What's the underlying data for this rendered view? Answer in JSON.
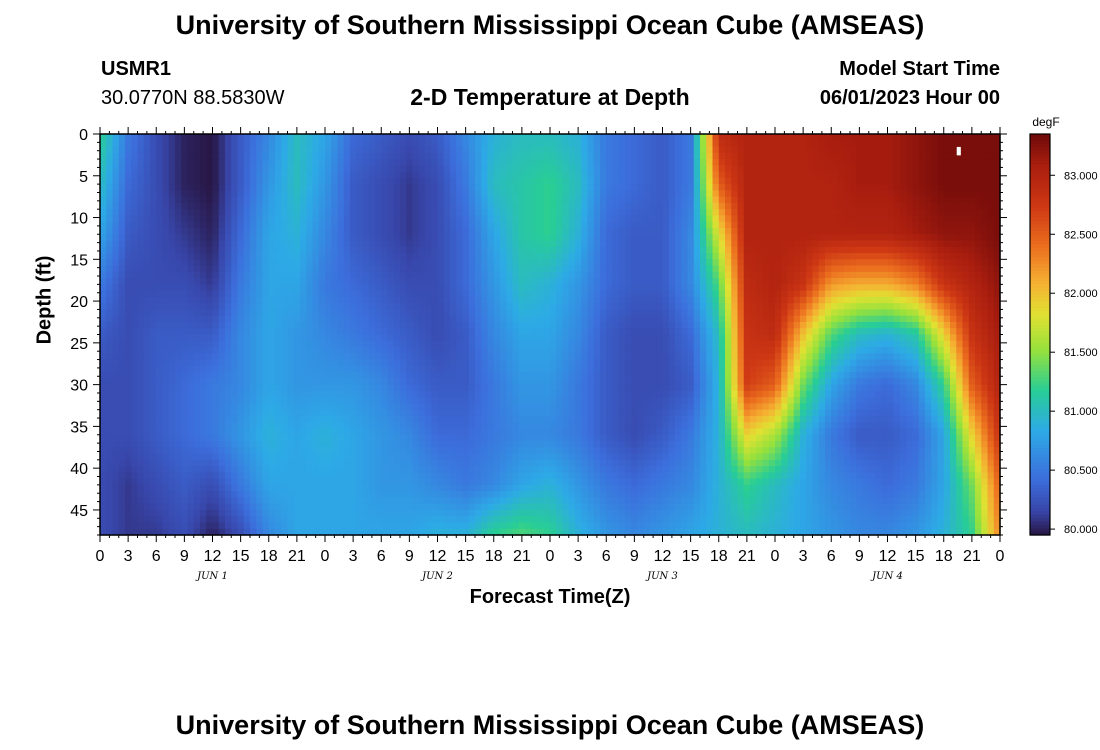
{
  "header": {
    "title": "University of Southern Mississippi Ocean Cube (AMSEAS)",
    "station_id": "USMR1",
    "station_coords": "30.0770N  88.5830W",
    "product": "2-D Temperature at Depth",
    "model_start_label": "Model Start Time",
    "model_start_value": "06/01/2023 Hour 00"
  },
  "footer": {
    "title_repeat": "University of Southern Mississippi Ocean Cube (AMSEAS)"
  },
  "chart_data": {
    "type": "heatmap",
    "xlabel": "Forecast Time(Z)",
    "ylabel": "Depth (ft)",
    "x_tick_labels": [
      "0",
      "3",
      "6",
      "9",
      "12",
      "15",
      "18",
      "21",
      "0",
      "3",
      "6",
      "9",
      "12",
      "15",
      "18",
      "21",
      "0",
      "3",
      "6",
      "9",
      "12",
      "15",
      "18",
      "21",
      "0",
      "3",
      "6",
      "9",
      "12",
      "15",
      "18",
      "21",
      "0"
    ],
    "day_labels": [
      {
        "label": "JUN 1",
        "at_hour": 12
      },
      {
        "label": "JUN 2",
        "at_hour": 36
      },
      {
        "label": "JUN 3",
        "at_hour": 60
      },
      {
        "label": "JUN 4",
        "at_hour": 84
      }
    ],
    "xlim_hours": [
      0,
      96
    ],
    "y_ticks": [
      0,
      5,
      10,
      15,
      20,
      25,
      30,
      35,
      40,
      45
    ],
    "ylim_ft": [
      0,
      48
    ],
    "colorbar": {
      "unit": "degF",
      "ticks": [
        "80.000",
        "80.500",
        "81.000",
        "81.500",
        "82.000",
        "82.500",
        "83.000"
      ],
      "range": [
        79.95,
        83.35
      ]
    },
    "depths_ft": [
      0,
      6,
      12,
      18,
      24,
      30,
      36,
      42,
      48
    ],
    "hours": [
      0,
      3,
      6,
      9,
      12,
      15,
      18,
      21,
      24,
      27,
      30,
      33,
      36,
      39,
      42,
      45,
      48,
      51,
      54,
      57,
      60,
      63,
      66,
      69,
      72,
      75,
      78,
      81,
      84,
      87,
      90,
      93,
      96
    ],
    "temperature_degF": [
      [
        81.2,
        80.5,
        80.2,
        80.0,
        79.95,
        80.3,
        80.6,
        81.0,
        80.8,
        80.4,
        80.3,
        80.2,
        80.3,
        80.6,
        80.9,
        81.0,
        81.0,
        80.9,
        80.5,
        80.4,
        80.3,
        80.5,
        82.9,
        83.0,
        83.0,
        83.0,
        83.1,
        83.1,
        83.1,
        83.2,
        83.3,
        83.3,
        83.3
      ],
      [
        81.0,
        80.4,
        80.2,
        80.0,
        79.95,
        80.3,
        80.7,
        81.0,
        80.7,
        80.3,
        80.2,
        80.1,
        80.2,
        80.5,
        81.0,
        81.1,
        81.2,
        81.0,
        80.5,
        80.4,
        80.3,
        80.5,
        82.5,
        83.0,
        83.0,
        83.0,
        83.0,
        83.1,
        83.1,
        83.2,
        83.3,
        83.3,
        83.3
      ],
      [
        80.8,
        80.3,
        80.2,
        80.1,
        80.0,
        80.4,
        80.8,
        80.9,
        80.6,
        80.3,
        80.2,
        80.1,
        80.2,
        80.4,
        80.8,
        81.1,
        81.2,
        80.9,
        80.4,
        80.3,
        80.3,
        80.6,
        81.8,
        83.0,
        83.0,
        83.0,
        83.0,
        83.0,
        83.0,
        83.1,
        83.2,
        83.2,
        83.3
      ],
      [
        80.5,
        80.2,
        80.2,
        80.2,
        80.1,
        80.5,
        80.8,
        80.8,
        80.5,
        80.4,
        80.3,
        80.2,
        80.2,
        80.4,
        80.7,
        81.0,
        80.9,
        80.7,
        80.4,
        80.3,
        80.3,
        80.6,
        81.3,
        82.9,
        83.0,
        82.8,
        82.2,
        82.1,
        82.1,
        82.3,
        82.8,
        83.0,
        83.2
      ],
      [
        80.3,
        80.2,
        80.3,
        80.3,
        80.3,
        80.6,
        80.8,
        80.7,
        80.6,
        80.5,
        80.4,
        80.3,
        80.2,
        80.3,
        80.6,
        80.8,
        80.8,
        80.6,
        80.3,
        80.2,
        80.2,
        80.4,
        81.0,
        82.8,
        82.9,
        82.0,
        81.3,
        81.0,
        80.9,
        81.1,
        81.9,
        82.8,
        83.1
      ],
      [
        80.2,
        80.2,
        80.3,
        80.4,
        80.5,
        80.6,
        80.8,
        80.7,
        80.7,
        80.7,
        80.6,
        80.4,
        80.3,
        80.3,
        80.5,
        80.7,
        80.7,
        80.5,
        80.3,
        80.2,
        80.2,
        80.3,
        80.9,
        82.7,
        82.5,
        81.4,
        80.8,
        80.5,
        80.4,
        80.6,
        81.2,
        82.5,
        83.0
      ],
      [
        80.2,
        80.2,
        80.3,
        80.4,
        80.5,
        80.7,
        80.9,
        80.8,
        80.9,
        80.8,
        80.7,
        80.6,
        80.4,
        80.4,
        80.5,
        80.6,
        80.6,
        80.5,
        80.3,
        80.2,
        80.3,
        80.5,
        80.9,
        81.9,
        81.6,
        80.9,
        80.5,
        80.3,
        80.3,
        80.4,
        80.8,
        81.9,
        82.8
      ],
      [
        80.2,
        80.1,
        80.2,
        80.3,
        80.2,
        80.5,
        80.8,
        80.8,
        80.8,
        80.8,
        80.7,
        80.7,
        80.6,
        80.5,
        80.6,
        80.8,
        80.9,
        80.7,
        80.5,
        80.4,
        80.5,
        80.6,
        80.9,
        81.2,
        81.0,
        80.8,
        80.6,
        80.5,
        80.4,
        80.5,
        80.8,
        81.4,
        82.5
      ],
      [
        80.2,
        80.1,
        80.1,
        80.2,
        80.0,
        80.2,
        80.6,
        80.8,
        80.8,
        80.8,
        80.8,
        80.8,
        80.9,
        80.9,
        81.2,
        81.3,
        81.2,
        80.9,
        80.7,
        80.6,
        80.7,
        80.8,
        80.9,
        81.0,
        80.9,
        80.8,
        80.7,
        80.6,
        80.6,
        80.7,
        80.9,
        81.2,
        82.3
      ]
    ],
    "marker_note": "▮"
  }
}
